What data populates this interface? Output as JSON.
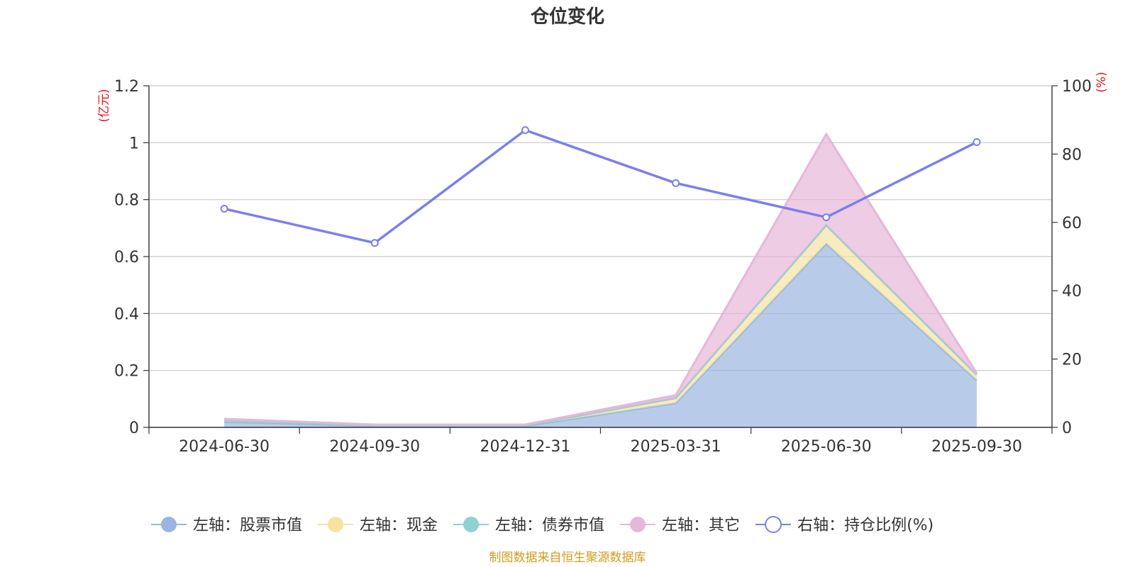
{
  "chart_data": {
    "type": "area",
    "title": "仓位变化",
    "categories": [
      "2024-06-30",
      "2024-09-30",
      "2024-12-31",
      "2025-03-31",
      "2025-06-30",
      "2025-09-30"
    ],
    "left_axis": {
      "unit": "(亿元)",
      "ylim": [
        0,
        1.2
      ],
      "ticks": [
        "0",
        "0.2",
        "0.4",
        "0.6",
        "0.8",
        "1",
        "1.2"
      ]
    },
    "right_axis": {
      "unit": "(%)",
      "ylim": [
        0,
        100
      ],
      "ticks": [
        "0",
        "20",
        "40",
        "60",
        "80",
        "100"
      ]
    },
    "series": [
      {
        "name": "左轴：股票市值",
        "axis": "left",
        "stack": true,
        "values": [
          0.02,
          0.005,
          0.005,
          0.085,
          0.645,
          0.165
        ],
        "color": "#9ab6e0"
      },
      {
        "name": "左轴：现金",
        "axis": "left",
        "stack": true,
        "values": [
          0.005,
          0.002,
          0.002,
          0.018,
          0.065,
          0.02
        ],
        "color": "#f5e3a1"
      },
      {
        "name": "左轴：债券市值",
        "axis": "left",
        "stack": true,
        "values": [
          0,
          0,
          0,
          0,
          0,
          0
        ],
        "color": "#8fd1d1"
      },
      {
        "name": "左轴：其它",
        "axis": "left",
        "stack": true,
        "values": [
          0.005,
          0.003,
          0.003,
          0.01,
          0.32,
          0.005
        ],
        "color": "#e7b7d7"
      },
      {
        "name": "右轴：持仓比例(%)",
        "axis": "right",
        "type": "line",
        "values": [
          64,
          54,
          87,
          71.5,
          61.5,
          83.5
        ],
        "color": "#7b7fee"
      }
    ],
    "grid": true,
    "legend_position": "bottom"
  },
  "footer": {
    "source": "制图数据来自恒生聚源数据库"
  }
}
